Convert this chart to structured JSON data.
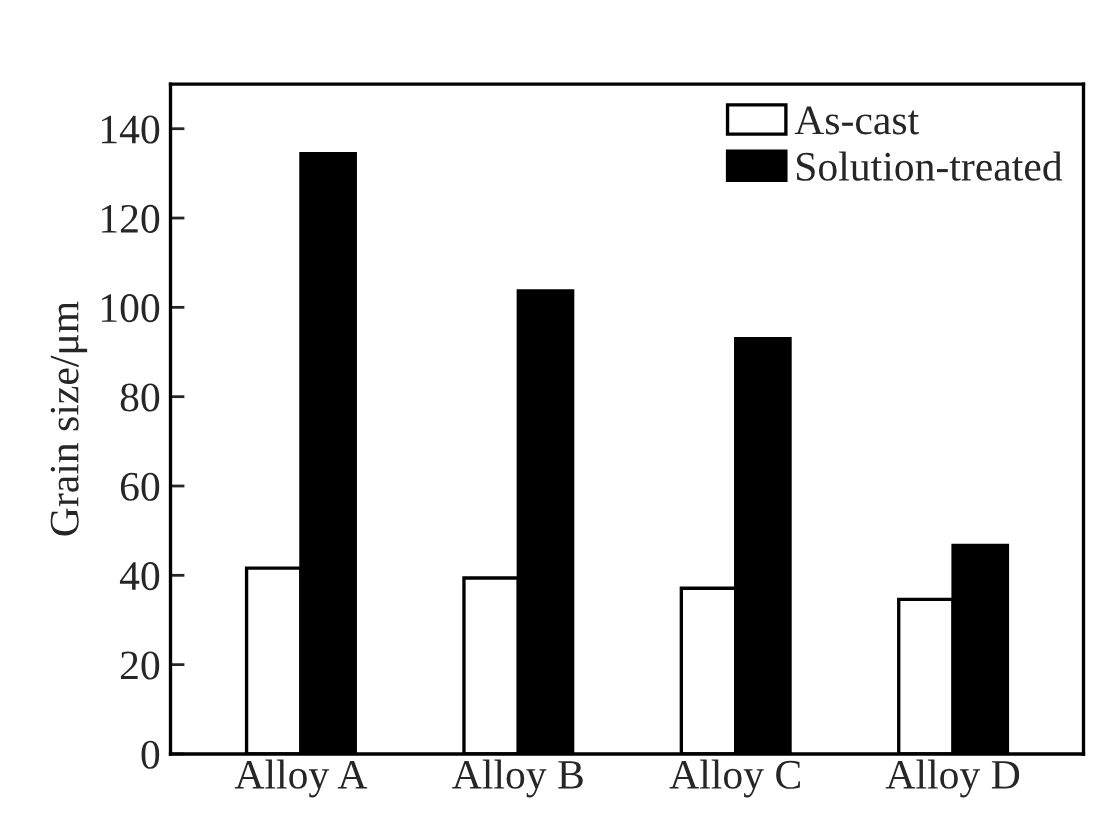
{
  "chart_data": {
    "type": "bar",
    "ylabel": "Grain size/μm",
    "categories": [
      "Alloy A",
      "Alloy B",
      "Alloy C",
      "Alloy D"
    ],
    "series": [
      {
        "name": "As-cast",
        "color": "#ffffff",
        "values": [
          41.6,
          39.4,
          37.1,
          34.6
        ]
      },
      {
        "name": "Solution-treated",
        "color": "#000000",
        "values": [
          134.4,
          103.7,
          93.0,
          46.7
        ]
      }
    ],
    "ylim": [
      0,
      150
    ],
    "yticks": [
      0,
      20,
      40,
      60,
      80,
      100,
      120,
      140
    ],
    "grid": false,
    "legend": "top right"
  }
}
